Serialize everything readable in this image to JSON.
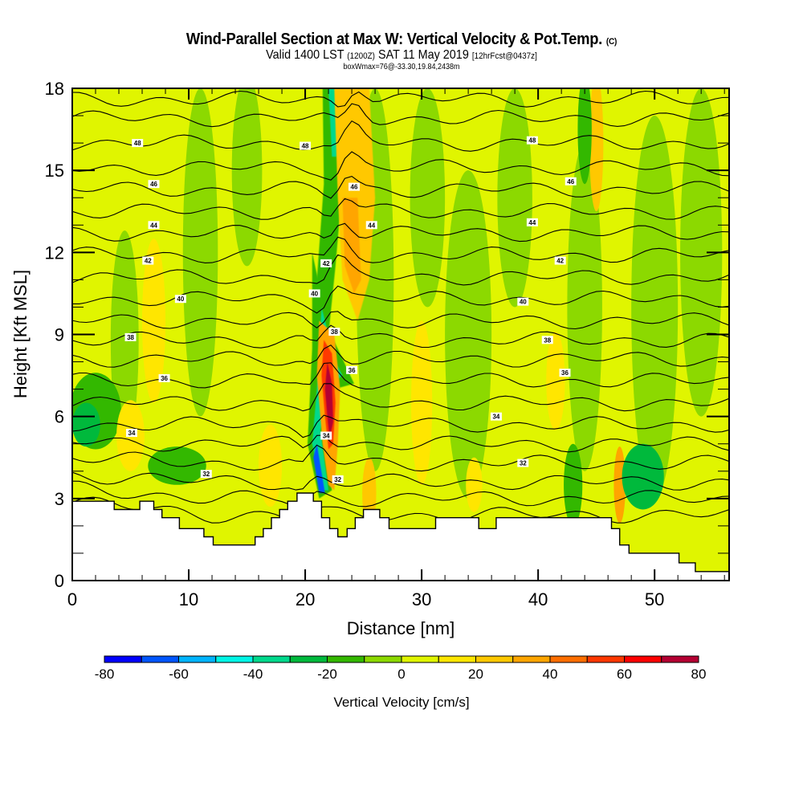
{
  "header": {
    "title_main": "Wind-Parallel Section at Max W: Vertical Velocity & Pot.Temp.",
    "title_mark": "(C)",
    "valid_a": "Valid 1400 LST",
    "valid_b": "(1200Z)",
    "valid_c": "SAT 11 May 2019",
    "valid_d": "[12hrFcst@0437z]",
    "box_info": "boxWmax=76@-33.30,19.84,2438m"
  },
  "chart_data": {
    "type": "heatmap",
    "title": "Wind-Parallel Section at Max W: Vertical Velocity & Pot.Temp.",
    "xlabel": "Distance [nm]",
    "ylabel": "Height [Kft MSL]",
    "xlim": [
      0,
      56.4
    ],
    "ylim": [
      0,
      18
    ],
    "xticks": [
      0,
      10,
      20,
      30,
      40,
      50
    ],
    "xtick_labels": [
      "0",
      "10",
      "20",
      "30",
      "40",
      "50"
    ],
    "yticks": [
      0,
      3,
      6,
      9,
      12,
      15,
      18
    ],
    "ytick_labels": [
      "0",
      "3",
      "6",
      "9",
      "12",
      "15",
      "18"
    ],
    "colorbar": {
      "label": "Vertical Velocity [cm/s]",
      "levels": [
        -80,
        -70,
        -60,
        -50,
        -40,
        -30,
        -20,
        -10,
        0,
        10,
        20,
        30,
        40,
        50,
        60,
        70,
        80
      ],
      "tick_values": [
        -80,
        -60,
        -40,
        -20,
        0,
        20,
        40,
        60,
        80
      ],
      "tick_labels": [
        "-80",
        "-60",
        "-40",
        "-20",
        "0",
        "20",
        "40",
        "60",
        "80"
      ],
      "colors": [
        "#0000ff",
        "#0055ff",
        "#00b4ff",
        "#00f5e6",
        "#00d98c",
        "#00b93c",
        "#33b800",
        "#8cd900",
        "#e0f500",
        "#ffe600",
        "#ffc800",
        "#ffa500",
        "#ff6e00",
        "#ff3700",
        "#ff0000",
        "#b40032"
      ]
    },
    "background_w": 3,
    "w_features": [
      {
        "x": 4.5,
        "y": 8.8,
        "rx": 1.2,
        "ry": 4.0,
        "w": -5
      },
      {
        "x": 11,
        "y": 12,
        "rx": 1.5,
        "ry": 6,
        "w": -5
      },
      {
        "x": 15,
        "y": 15,
        "rx": 1.3,
        "ry": 3.5,
        "w": -5
      },
      {
        "x": 26,
        "y": 11,
        "rx": 1.6,
        "ry": 7,
        "w": -5
      },
      {
        "x": 30.5,
        "y": 14,
        "rx": 1.5,
        "ry": 4,
        "w": -5
      },
      {
        "x": 34,
        "y": 9,
        "rx": 2.0,
        "ry": 6,
        "w": -5
      },
      {
        "x": 38,
        "y": 14,
        "rx": 1.5,
        "ry": 4,
        "w": -5
      },
      {
        "x": 44,
        "y": 10,
        "rx": 1.5,
        "ry": 6,
        "w": -5
      },
      {
        "x": 50,
        "y": 10,
        "rx": 2.0,
        "ry": 7,
        "w": -5
      },
      {
        "x": 54,
        "y": 12,
        "rx": 1.8,
        "ry": 6,
        "w": -5
      },
      {
        "x": 2,
        "y": 6.2,
        "rx": 2.2,
        "ry": 1.4,
        "w": -15
      },
      {
        "x": 1.2,
        "y": 5.7,
        "rx": 1.2,
        "ry": 0.8,
        "w": -25
      },
      {
        "x": 9,
        "y": 4.2,
        "rx": 2.5,
        "ry": 0.7,
        "w": -15
      },
      {
        "x": 7,
        "y": 9.5,
        "rx": 1.0,
        "ry": 3,
        "w": 15
      },
      {
        "x": 5,
        "y": 5.3,
        "rx": 1.2,
        "ry": 1.3,
        "w": 15
      },
      {
        "x": 17,
        "y": 4.2,
        "rx": 1.0,
        "ry": 1.5,
        "w": 15
      },
      {
        "x": 30,
        "y": 6.5,
        "rx": 0.9,
        "ry": 3,
        "w": 15
      },
      {
        "x": 41.5,
        "y": 7.3,
        "rx": 0.8,
        "ry": 1.8,
        "w": 15
      },
      {
        "x": 45,
        "y": 16,
        "rx": 0.6,
        "ry": 2.5,
        "w": 25
      },
      {
        "x": 44,
        "y": 16.5,
        "rx": 0.6,
        "ry": 2.0,
        "w": -15
      },
      {
        "x": 47,
        "y": 3.5,
        "rx": 0.5,
        "ry": 1.4,
        "w": 35
      },
      {
        "x": 49,
        "y": 3.8,
        "rx": 1.8,
        "ry": 1.2,
        "w": -25
      },
      {
        "x": 43,
        "y": 3.5,
        "rx": 0.8,
        "ry": 1.5,
        "w": -15
      },
      {
        "x": 25.5,
        "y": 3.2,
        "rx": 0.6,
        "ry": 1.3,
        "w": 25
      },
      {
        "x": 34.5,
        "y": 3.5,
        "rx": 0.7,
        "ry": 1.0,
        "w": 15
      }
    ],
    "w_bands": [
      {
        "name": "downdraft-upper",
        "points": [
          [
            21.5,
            18
          ],
          [
            23.5,
            18
          ],
          [
            23.2,
            14.5
          ],
          [
            22.6,
            11.5
          ],
          [
            22.0,
            9
          ],
          [
            21.0,
            11
          ],
          [
            21.6,
            14.5
          ]
        ],
        "w": -15
      },
      {
        "name": "downdraft-upper-core",
        "points": [
          [
            22.0,
            18
          ],
          [
            23.0,
            18
          ],
          [
            22.7,
            15.5
          ],
          [
            22.3,
            15.5
          ]
        ],
        "w": -35
      },
      {
        "name": "downdraft-lower",
        "points": [
          [
            20.6,
            12
          ],
          [
            22.0,
            9.2
          ],
          [
            24.2,
            7.2
          ],
          [
            22.5,
            7
          ],
          [
            21.5,
            5.5
          ],
          [
            22.3,
            3.3
          ],
          [
            21.2,
            3.0
          ],
          [
            20.2,
            5.0
          ],
          [
            20.6,
            8.5
          ]
        ],
        "w": -15
      },
      {
        "name": "downdraft-lower-core",
        "points": [
          [
            21.4,
            10
          ],
          [
            22.6,
            8
          ],
          [
            23.2,
            7.5
          ],
          [
            22.3,
            7.2
          ],
          [
            21.3,
            5.5
          ],
          [
            22.0,
            3.3
          ],
          [
            21.4,
            3.3
          ],
          [
            20.6,
            5.0
          ],
          [
            21.1,
            7.5
          ]
        ],
        "w": -40
      },
      {
        "name": "downdraft-base",
        "points": [
          [
            21.0,
            5.0
          ],
          [
            21.7,
            3.2
          ],
          [
            21.2,
            3.2
          ],
          [
            20.7,
            4.5
          ]
        ],
        "w": -65
      },
      {
        "name": "updraft-upper",
        "points": [
          [
            22.5,
            18
          ],
          [
            25.5,
            18
          ],
          [
            26,
            14
          ],
          [
            25.5,
            11
          ],
          [
            24.5,
            9.5
          ],
          [
            23.2,
            11
          ],
          [
            22.8,
            14
          ]
        ],
        "w": 25
      },
      {
        "name": "updraft-upper-core",
        "points": [
          [
            23.2,
            14
          ],
          [
            24.5,
            14
          ],
          [
            24.8,
            11
          ],
          [
            24.2,
            10.5
          ],
          [
            23.4,
            11.5
          ]
        ],
        "w": 35
      },
      {
        "name": "updraft-main",
        "points": [
          [
            21.2,
            9.5
          ],
          [
            22.5,
            9
          ],
          [
            23.0,
            7
          ],
          [
            22.8,
            5
          ],
          [
            22.5,
            3.3
          ],
          [
            22.0,
            3.5
          ],
          [
            21.5,
            5.0
          ],
          [
            21.0,
            7.5
          ]
        ],
        "w": 35
      },
      {
        "name": "updraft-main-mid",
        "points": [
          [
            21.6,
            8.8
          ],
          [
            22.3,
            8.3
          ],
          [
            22.6,
            6.5
          ],
          [
            22.4,
            5.0
          ],
          [
            22.0,
            4.8
          ],
          [
            21.7,
            6.0
          ],
          [
            21.4,
            7.5
          ]
        ],
        "w": 55
      },
      {
        "name": "updraft-main-core",
        "points": [
          [
            21.9,
            8.0
          ],
          [
            22.3,
            7.2
          ],
          [
            22.4,
            5.8
          ],
          [
            22.1,
            5.2
          ],
          [
            21.9,
            6.0
          ],
          [
            21.7,
            7.0
          ]
        ],
        "w": 75
      }
    ],
    "terrain_kft": [
      [
        0,
        2.9
      ],
      [
        3.6,
        2.9
      ],
      [
        3.6,
        2.6
      ],
      [
        5.8,
        2.6
      ],
      [
        5.8,
        2.9
      ],
      [
        7.0,
        2.9
      ],
      [
        7.0,
        2.6
      ],
      [
        7.7,
        2.6
      ],
      [
        7.7,
        2.3
      ],
      [
        9.2,
        2.3
      ],
      [
        9.2,
        1.9
      ],
      [
        11.3,
        1.9
      ],
      [
        11.3,
        1.6
      ],
      [
        12.1,
        1.6
      ],
      [
        12.1,
        1.3
      ],
      [
        15.7,
        1.3
      ],
      [
        15.7,
        1.6
      ],
      [
        16.4,
        1.6
      ],
      [
        16.4,
        1.9
      ],
      [
        17.1,
        1.9
      ],
      [
        17.1,
        2.3
      ],
      [
        17.8,
        2.3
      ],
      [
        17.8,
        2.6
      ],
      [
        18.5,
        2.6
      ],
      [
        18.5,
        2.9
      ],
      [
        19.3,
        2.9
      ],
      [
        19.3,
        3.2
      ],
      [
        20.7,
        3.2
      ],
      [
        20.7,
        2.9
      ],
      [
        21.4,
        2.9
      ],
      [
        21.4,
        2.3
      ],
      [
        22.1,
        2.3
      ],
      [
        22.1,
        1.9
      ],
      [
        22.8,
        1.9
      ],
      [
        22.8,
        1.6
      ],
      [
        23.6,
        1.6
      ],
      [
        23.6,
        1.9
      ],
      [
        24.3,
        1.9
      ],
      [
        24.3,
        2.3
      ],
      [
        25.0,
        2.3
      ],
      [
        25.0,
        2.6
      ],
      [
        26.4,
        2.6
      ],
      [
        26.4,
        2.3
      ],
      [
        27.2,
        2.3
      ],
      [
        27.2,
        1.9
      ],
      [
        31.2,
        1.9
      ],
      [
        31.2,
        2.3
      ],
      [
        34.9,
        2.3
      ],
      [
        34.9,
        1.9
      ],
      [
        36.4,
        1.9
      ],
      [
        36.4,
        2.3
      ],
      [
        46.3,
        2.3
      ],
      [
        46.3,
        1.9
      ],
      [
        47.0,
        1.9
      ],
      [
        47.0,
        1.3
      ],
      [
        47.8,
        1.3
      ],
      [
        47.8,
        1.0
      ],
      [
        52.1,
        1.0
      ],
      [
        52.1,
        0.65
      ],
      [
        53.5,
        0.65
      ],
      [
        53.5,
        0.33
      ],
      [
        56.4,
        0.33
      ]
    ],
    "theta_contours": {
      "interval": 1,
      "levels": [
        29,
        30,
        31,
        32,
        33,
        34,
        35,
        36,
        37,
        38,
        39,
        40,
        41,
        42,
        43,
        44,
        45,
        46,
        47,
        48,
        49
      ],
      "base_heights_kft": [
        2.4,
        3.0,
        3.6,
        4.3,
        5.0,
        5.7,
        6.5,
        7.3,
        8.1,
        8.8,
        9.5,
        10.3,
        11.1,
        11.9,
        12.7,
        13.5,
        14.3,
        15.1,
        16.0,
        16.9,
        17.6
      ],
      "labels": [
        {
          "text": "48",
          "x": 5.6,
          "y": 16.0
        },
        {
          "text": "48",
          "x": 20.0,
          "y": 15.9
        },
        {
          "text": "48",
          "x": 39.5,
          "y": 16.1
        },
        {
          "text": "46",
          "x": 7.0,
          "y": 14.5
        },
        {
          "text": "46",
          "x": 24.2,
          "y": 14.4
        },
        {
          "text": "46",
          "x": 42.8,
          "y": 14.6
        },
        {
          "text": "44",
          "x": 7.0,
          "y": 13.0
        },
        {
          "text": "44",
          "x": 25.7,
          "y": 13.0
        },
        {
          "text": "44",
          "x": 39.5,
          "y": 13.1
        },
        {
          "text": "42",
          "x": 6.5,
          "y": 11.7
        },
        {
          "text": "42",
          "x": 21.8,
          "y": 11.6
        },
        {
          "text": "42",
          "x": 41.9,
          "y": 11.7
        },
        {
          "text": "40",
          "x": 9.3,
          "y": 10.3
        },
        {
          "text": "40",
          "x": 20.8,
          "y": 10.5
        },
        {
          "text": "40",
          "x": 38.7,
          "y": 10.2
        },
        {
          "text": "38",
          "x": 5.0,
          "y": 8.9
        },
        {
          "text": "38",
          "x": 22.5,
          "y": 9.1
        },
        {
          "text": "38",
          "x": 40.8,
          "y": 8.8
        },
        {
          "text": "36",
          "x": 7.9,
          "y": 7.4
        },
        {
          "text": "36",
          "x": 24.0,
          "y": 7.7
        },
        {
          "text": "36",
          "x": 42.3,
          "y": 7.6
        },
        {
          "text": "34",
          "x": 5.1,
          "y": 5.4
        },
        {
          "text": "34",
          "x": 21.8,
          "y": 5.3
        },
        {
          "text": "34",
          "x": 36.4,
          "y": 6.0
        },
        {
          "text": "32",
          "x": 11.5,
          "y": 3.9
        },
        {
          "text": "32",
          "x": 22.8,
          "y": 3.7
        },
        {
          "text": "32",
          "x": 38.7,
          "y": 4.3
        }
      ]
    }
  }
}
